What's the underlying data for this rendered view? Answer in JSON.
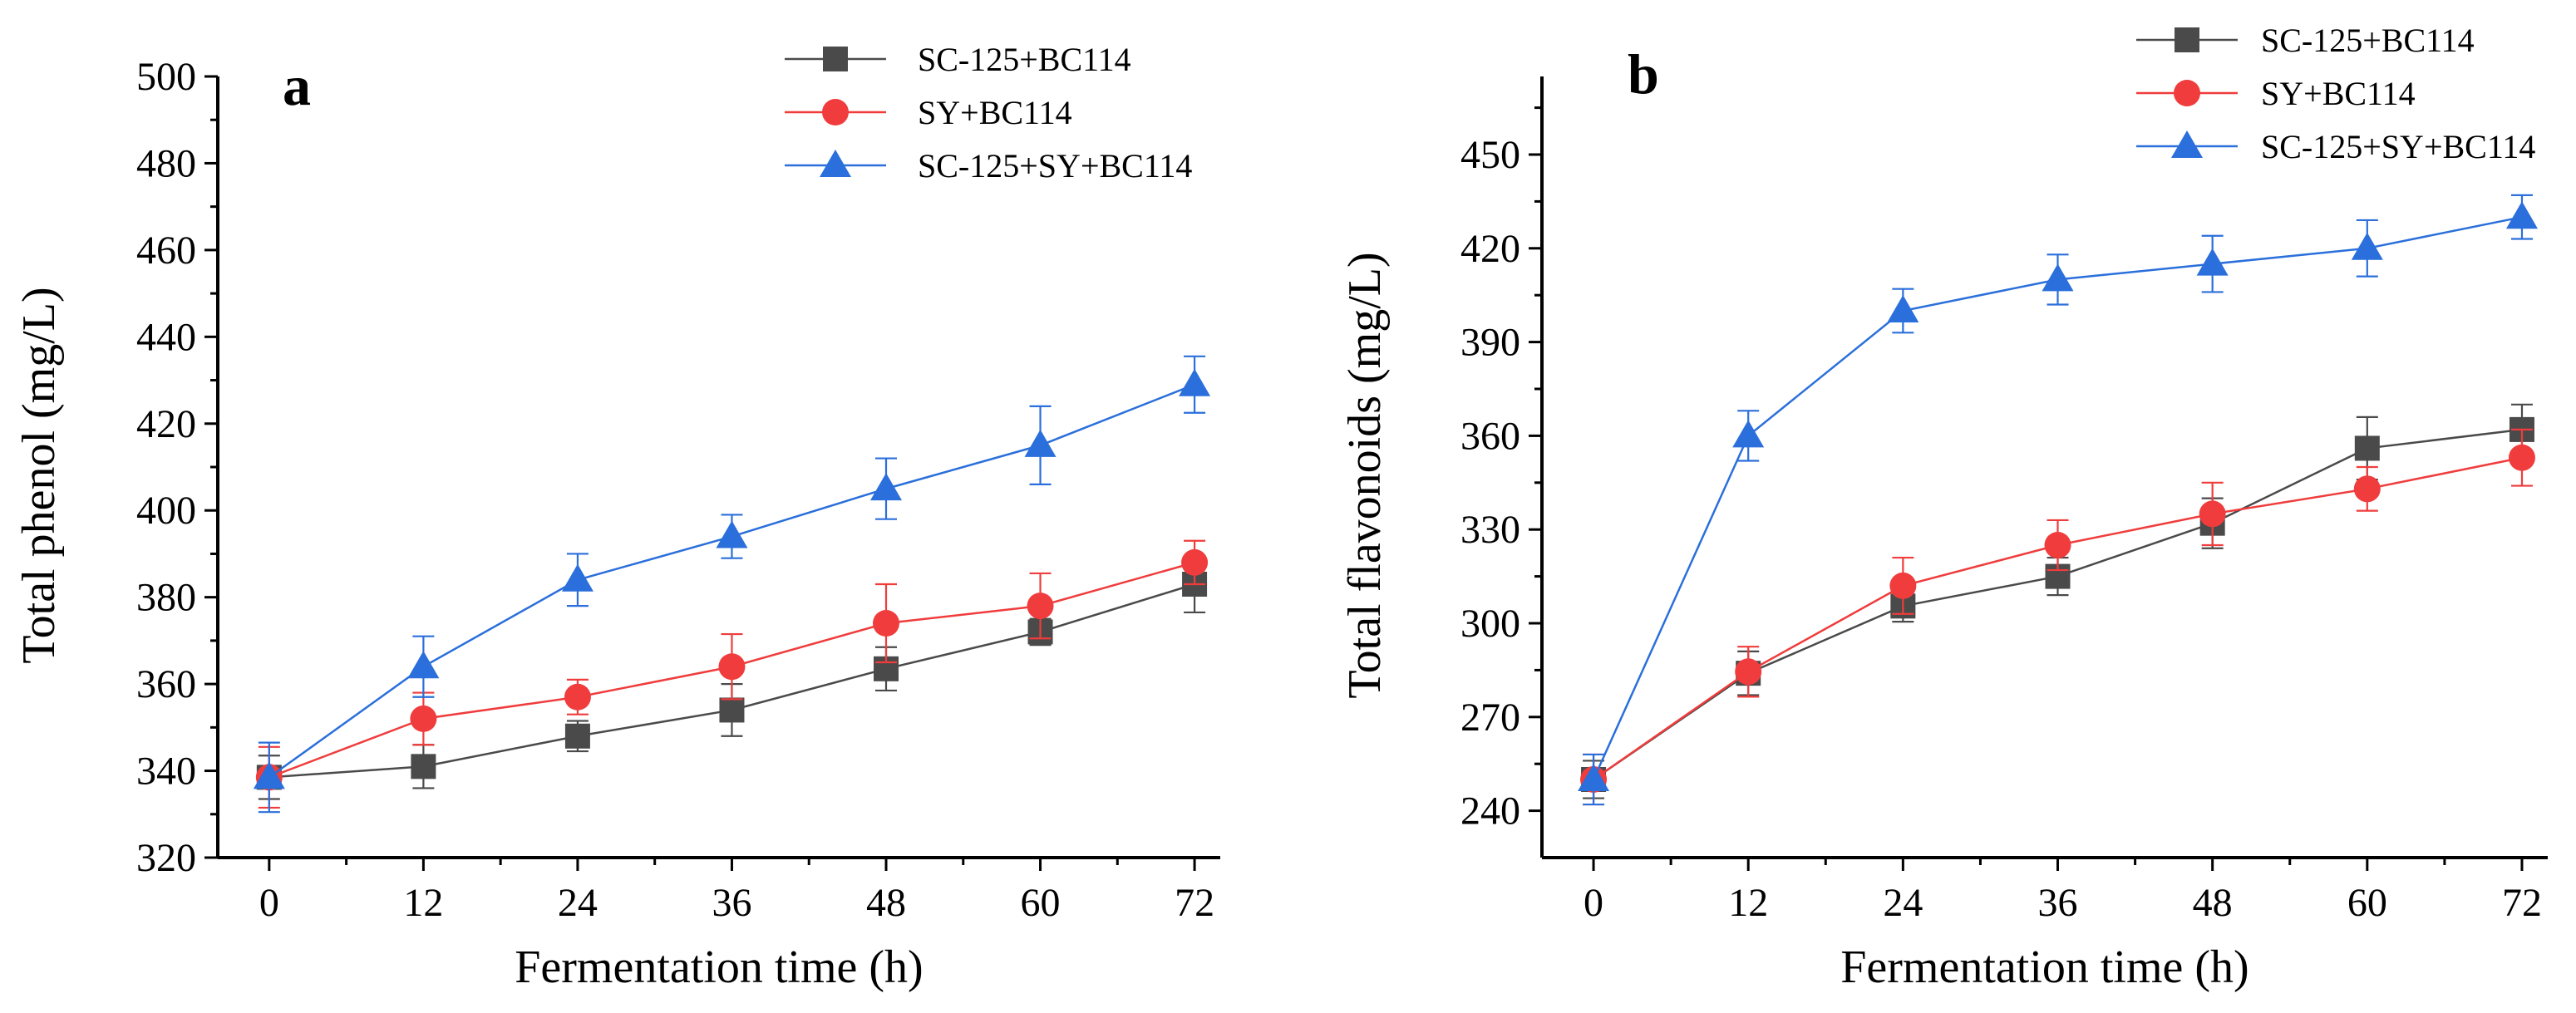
{
  "chart_data": [
    {
      "type": "line",
      "panel_label": "a",
      "xlabel": "Fermentation time (h)",
      "ylabel": "Total phenol (mg/L)",
      "x": [
        0,
        12,
        24,
        36,
        48,
        60,
        72
      ],
      "x_ticks": [
        "0",
        "12",
        "24",
        "36",
        "48",
        "60",
        "72"
      ],
      "xlim": [
        -4,
        74
      ],
      "ylim": [
        320,
        500
      ],
      "y_ticks": [
        "320",
        "340",
        "360",
        "380",
        "400",
        "420",
        "440",
        "460",
        "480",
        "500"
      ],
      "legend_position": "top-right",
      "series": [
        {
          "name": "SC-125+BC114",
          "color": "#4a4a4a",
          "marker": "square",
          "values": [
            338.5,
            341,
            348,
            354,
            363.5,
            372,
            383
          ],
          "errors": [
            5,
            5,
            3.5,
            6,
            5,
            3,
            6.5
          ]
        },
        {
          "name": "SY+BC114",
          "color": "#f03c3c",
          "marker": "circle",
          "values": [
            338.5,
            352,
            357,
            364,
            374,
            378,
            388
          ],
          "errors": [
            7,
            6,
            4,
            7.5,
            9,
            7.5,
            5
          ]
        },
        {
          "name": "SC-125+SY+BC114",
          "color": "#2a6fdb",
          "marker": "triangle",
          "values": [
            338.5,
            364,
            384,
            394,
            405,
            415,
            429
          ],
          "errors": [
            8,
            7,
            6,
            5,
            7,
            9,
            6.5
          ]
        }
      ]
    },
    {
      "type": "line",
      "panel_label": "b",
      "xlabel": "Fermentation time (h)",
      "ylabel": "Total flavonoids (mg/L)",
      "x": [
        0,
        12,
        24,
        36,
        48,
        60,
        72
      ],
      "x_ticks": [
        "0",
        "12",
        "24",
        "36",
        "48",
        "60",
        "72"
      ],
      "xlim": [
        -4,
        74
      ],
      "ylim": [
        225,
        475
      ],
      "y_ticks": [
        "240",
        "270",
        "300",
        "330",
        "360",
        "390",
        "420",
        "450"
      ],
      "legend_position": "top-right",
      "series": [
        {
          "name": "SC-125+BC114",
          "color": "#4a4a4a",
          "marker": "square",
          "values": [
            250,
            284,
            305.5,
            315,
            332,
            356,
            362
          ],
          "errors": [
            6,
            7,
            5,
            6,
            8,
            10,
            8
          ]
        },
        {
          "name": "SY+BC114",
          "color": "#f03c3c",
          "marker": "circle",
          "values": [
            250,
            284.5,
            312,
            325,
            335,
            343,
            353
          ],
          "errors": [
            8,
            8,
            9,
            8,
            10,
            7,
            9
          ]
        },
        {
          "name": "SC-125+SY+BC114",
          "color": "#2a6fdb",
          "marker": "triangle",
          "values": [
            250,
            360,
            400,
            410,
            415,
            420,
            430
          ],
          "errors": [
            8,
            8,
            7,
            8,
            9,
            9,
            7
          ]
        }
      ]
    }
  ]
}
